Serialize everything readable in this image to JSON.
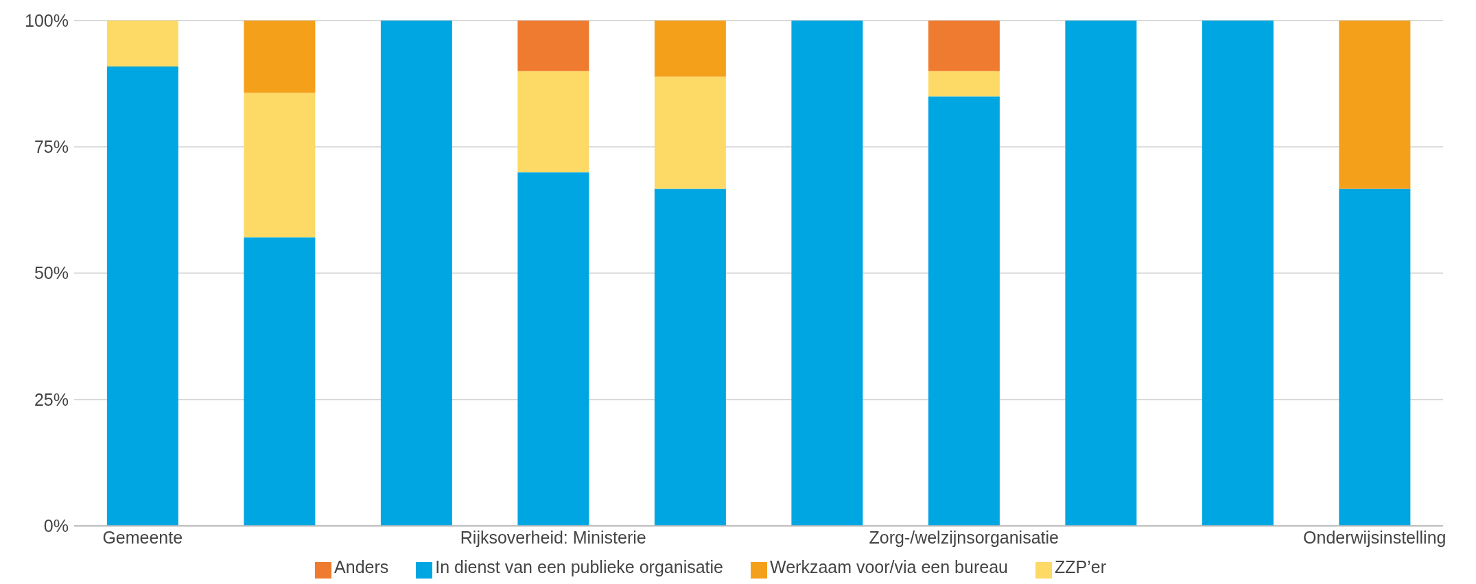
{
  "chart_data": {
    "type": "bar",
    "stacked": true,
    "categories": [
      "Gemeente",
      null,
      null,
      "Rijksoverheid: Ministerie",
      null,
      null,
      "Zorg-/welzijnsorganisatie",
      null,
      null,
      "Onderwijsinstelling"
    ],
    "series": [
      {
        "name": "In dienst van een publieke organisatie",
        "color": "#00a6e2",
        "values": [
          90.9,
          57.1,
          100,
          70,
          66.7,
          100,
          85,
          100,
          100,
          66.7
        ]
      },
      {
        "name": "ZZP’er",
        "color": "#fdd966",
        "values": [
          9.1,
          28.6,
          0,
          20,
          22.2,
          0,
          5,
          0,
          0,
          0
        ]
      },
      {
        "name": "Werkzaam voor/via een bureau",
        "color": "#f5a01a",
        "values": [
          0,
          14.3,
          0,
          0,
          11.1,
          0,
          0,
          0,
          0,
          33.3
        ]
      },
      {
        "name": "Anders",
        "color": "#ee7b30",
        "values": [
          0,
          0,
          0,
          10,
          0,
          0,
          10,
          0,
          0,
          0
        ]
      }
    ],
    "ylim": [
      0,
      100
    ],
    "yticks": [
      {
        "value": 0,
        "label": "0%"
      },
      {
        "value": 25,
        "label": "25%"
      },
      {
        "value": 50,
        "label": "50%"
      },
      {
        "value": 75,
        "label": "75%"
      },
      {
        "value": 100,
        "label": "100%"
      }
    ],
    "grid": "y",
    "legend": "bottom"
  }
}
